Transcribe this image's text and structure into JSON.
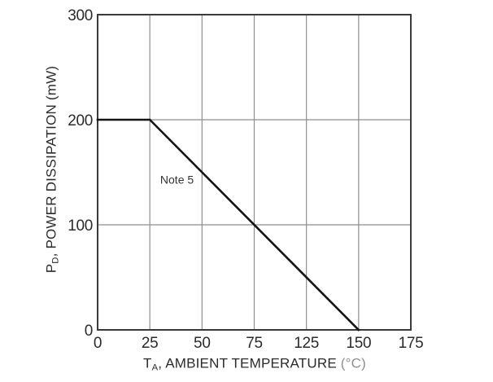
{
  "chart_data": {
    "type": "line",
    "title": "",
    "x_axis": {
      "label_prefix": "T",
      "label_sub": "A",
      "label_main": ", AMBIENT TEMPERATURE",
      "label_unit": "(°C)",
      "tick_labels": [
        0,
        25,
        50,
        75,
        125,
        150,
        175
      ]
    },
    "y_axis": {
      "label_prefix": "P",
      "label_sub": "D",
      "label_main": ", POWER DISSIPATION (mW)",
      "tick_labels": [
        0,
        100,
        200,
        300
      ],
      "min": 0,
      "max": 300
    },
    "series": [
      {
        "name": "power-derating-line",
        "points": [
          [
            0,
            200
          ],
          [
            25,
            200
          ],
          [
            150,
            0
          ]
        ]
      }
    ],
    "annotation": {
      "text": "Note 5",
      "x": 38,
      "y": 143
    },
    "grid": true,
    "legend": "none",
    "colors": {
      "line": "#141414",
      "grid": "#8e8e8e",
      "border": "#3a3a3a",
      "tick_text": "#2b2b2b",
      "annotation_text": "#333333",
      "background": "#ffffff"
    }
  }
}
